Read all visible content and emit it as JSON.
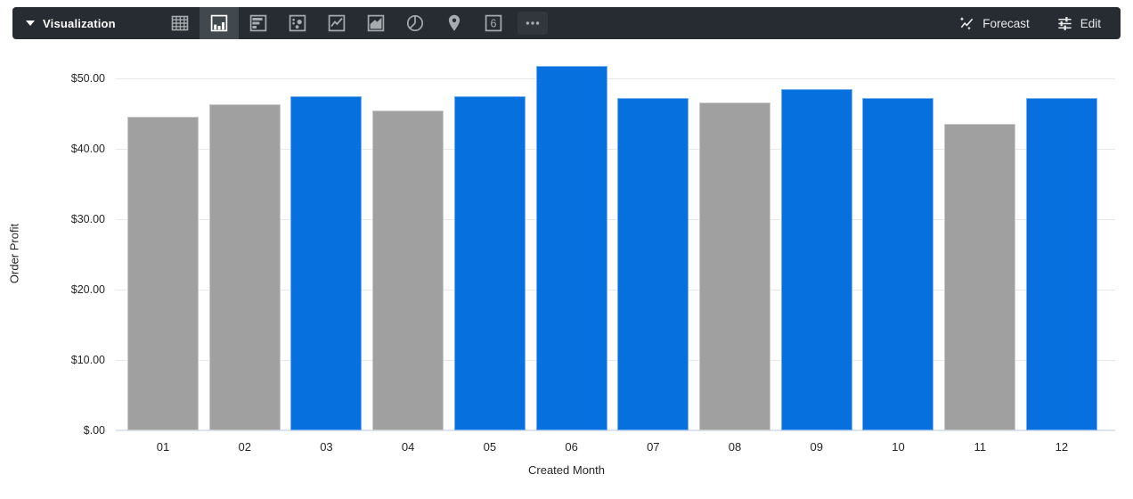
{
  "toolbar": {
    "label": "Visualization",
    "viz_types": [
      {
        "name": "table-icon",
        "selected": false
      },
      {
        "name": "column-chart-icon",
        "selected": true
      },
      {
        "name": "bar-chart-icon",
        "selected": false
      },
      {
        "name": "scatter-icon",
        "selected": false
      },
      {
        "name": "line-chart-icon",
        "selected": false
      },
      {
        "name": "area-chart-icon",
        "selected": false
      },
      {
        "name": "pie-chart-icon",
        "selected": false
      },
      {
        "name": "map-icon",
        "selected": false
      },
      {
        "name": "single-value-icon",
        "selected": false,
        "glyph_text": "6"
      },
      {
        "name": "more-icon",
        "selected": false
      }
    ],
    "forecast_label": "Forecast",
    "edit_label": "Edit"
  },
  "colors": {
    "toolbar_bg": "#262c31",
    "toolbar_selected_bg": "#41484e",
    "bar_blue": "#0671de",
    "bar_gray": "#a0a0a0",
    "gridline": "#e8e8e8",
    "axis_baseline": "#dde3ef",
    "axis_text": "#262626"
  },
  "chart_data": {
    "type": "bar",
    "title": "",
    "categories": [
      "01",
      "02",
      "03",
      "04",
      "05",
      "06",
      "07",
      "08",
      "09",
      "10",
      "11",
      "12"
    ],
    "values": [
      44.5,
      46.3,
      47.5,
      45.5,
      47.5,
      51.8,
      47.2,
      46.6,
      48.5,
      47.2,
      43.6,
      47.2
    ],
    "bar_color_keys": [
      "gray",
      "gray",
      "blue",
      "gray",
      "blue",
      "blue",
      "blue",
      "gray",
      "blue",
      "blue",
      "gray",
      "blue"
    ],
    "xlabel": "Created Month",
    "ylabel": "Order Profit",
    "ylim": [
      0,
      53
    ],
    "yticks": {
      "values": [
        0,
        10,
        20,
        30,
        40,
        50
      ],
      "labels": [
        "$.00",
        "$10.00",
        "$20.00",
        "$30.00",
        "$40.00",
        "$50.00"
      ]
    },
    "grid": true,
    "legend": "none"
  }
}
